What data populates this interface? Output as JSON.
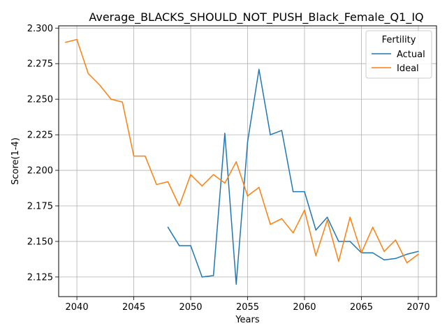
{
  "chart_data": {
    "type": "line",
    "title": "Average_BLACKS_SHOULD_NOT_PUSH_Black_Female_Q1_IQ",
    "xlabel": "Years",
    "ylabel": "Score(1-4)",
    "xlim": [
      2038.4,
      2071.6
    ],
    "ylim": [
      2.1112,
      2.3016
    ],
    "xticks": [
      2040,
      2045,
      2050,
      2055,
      2060,
      2065,
      2070
    ],
    "yticks": [
      2.125,
      2.15,
      2.175,
      2.2,
      2.225,
      2.25,
      2.275,
      2.3
    ],
    "ytick_labels": [
      "2.125",
      "2.150",
      "2.175",
      "2.200",
      "2.225",
      "2.250",
      "2.275",
      "2.300"
    ],
    "grid": true,
    "legend": {
      "title": "Fertility",
      "placement": "top-right"
    },
    "series": [
      {
        "name": "Actual",
        "color": "#1f77b4",
        "x": [
          2048,
          2049,
          2050,
          2051,
          2052,
          2053,
          2054,
          2055,
          2056,
          2057,
          2058,
          2059,
          2060,
          2061,
          2062,
          2063,
          2064,
          2065,
          2066,
          2067,
          2068,
          2069,
          2070
        ],
        "y": [
          2.16,
          2.147,
          2.147,
          2.125,
          2.126,
          2.226,
          2.12,
          2.22,
          2.271,
          2.225,
          2.228,
          2.185,
          2.185,
          2.158,
          2.167,
          2.15,
          2.15,
          2.142,
          2.142,
          2.137,
          2.138,
          2.141,
          2.143
        ]
      },
      {
        "name": "Ideal",
        "color": "#ff7f0e",
        "x": [
          2039,
          2040,
          2041,
          2042,
          2043,
          2044,
          2045,
          2046,
          2047,
          2048,
          2049,
          2050,
          2051,
          2052,
          2053,
          2054,
          2055,
          2056,
          2057,
          2058,
          2059,
          2060,
          2061,
          2062,
          2063,
          2064,
          2065,
          2066,
          2067,
          2068,
          2069,
          2070
        ],
        "y": [
          2.29,
          2.292,
          2.268,
          2.26,
          2.25,
          2.248,
          2.21,
          2.21,
          2.19,
          2.192,
          2.175,
          2.197,
          2.189,
          2.197,
          2.191,
          2.206,
          2.182,
          2.188,
          2.162,
          2.166,
          2.156,
          2.172,
          2.14,
          2.165,
          2.136,
          2.167,
          2.142,
          2.16,
          2.143,
          2.151,
          2.135,
          2.141
        ]
      }
    ]
  }
}
